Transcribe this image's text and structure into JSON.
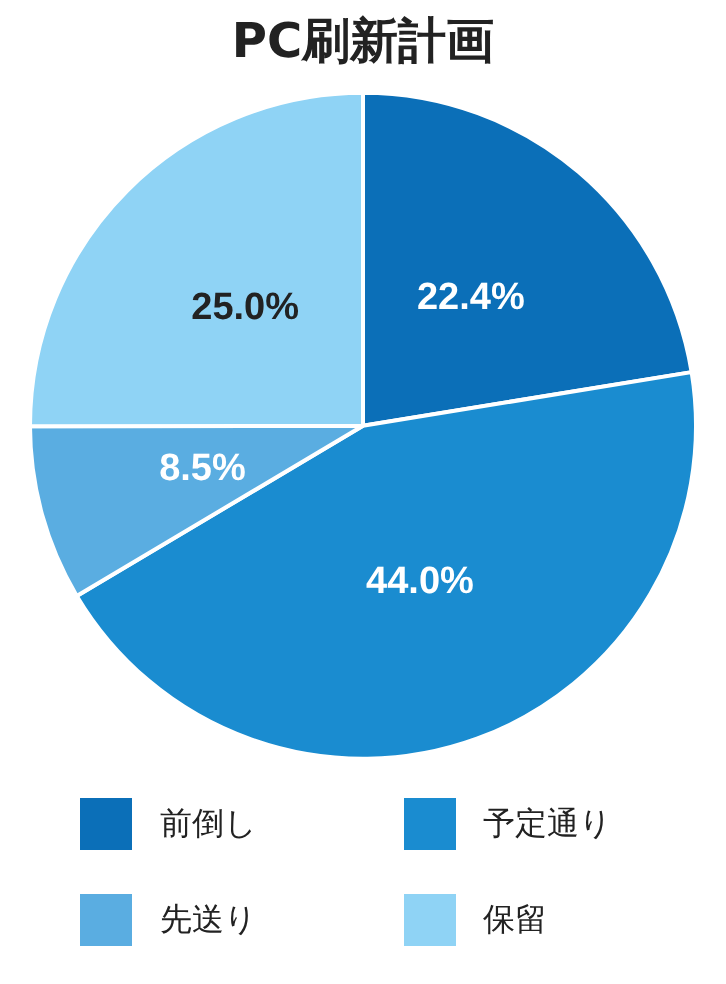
{
  "chart_data": {
    "type": "pie",
    "title": "PC刷新計画",
    "categories": [
      "前倒し",
      "予定通り",
      "先送り",
      "保留"
    ],
    "values": [
      22.4,
      44.0,
      8.5,
      25.0
    ],
    "colors": [
      "#0b6fb8",
      "#1a8cd0",
      "#5aade1",
      "#8fd3f5"
    ],
    "value_labels": [
      "22.4%",
      "44.0%",
      "8.5%",
      "25.0%"
    ],
    "legend": "bottom"
  }
}
